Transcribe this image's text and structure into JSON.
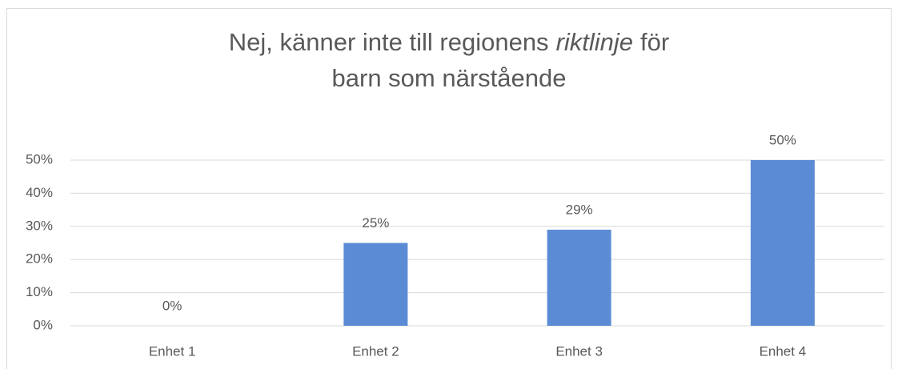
{
  "chart_data": {
    "type": "bar",
    "title": {
      "line1": [
        {
          "text": "Nej, känner inte till regionens"
        },
        {
          "text": "riktlinje",
          "italic": true
        },
        {
          "text": "för"
        }
      ],
      "line2": "barn som närstående"
    },
    "categories": [
      "Enhet 1",
      "Enhet 2",
      "Enhet 3",
      "Enhet 4"
    ],
    "values": [
      0,
      25,
      29,
      50
    ],
    "value_labels": [
      "0%",
      "25%",
      "29%",
      "50%"
    ],
    "color": "#5b8bd5",
    "ylim": [
      0,
      50
    ],
    "yticks": [
      {
        "value": 0,
        "label": "0%"
      },
      {
        "value": 10,
        "label": "10%"
      },
      {
        "value": 20,
        "label": "20%"
      },
      {
        "value": 30,
        "label": "30%"
      },
      {
        "value": 40,
        "label": "40%"
      },
      {
        "value": 50,
        "label": "50%"
      }
    ],
    "grid": true
  }
}
